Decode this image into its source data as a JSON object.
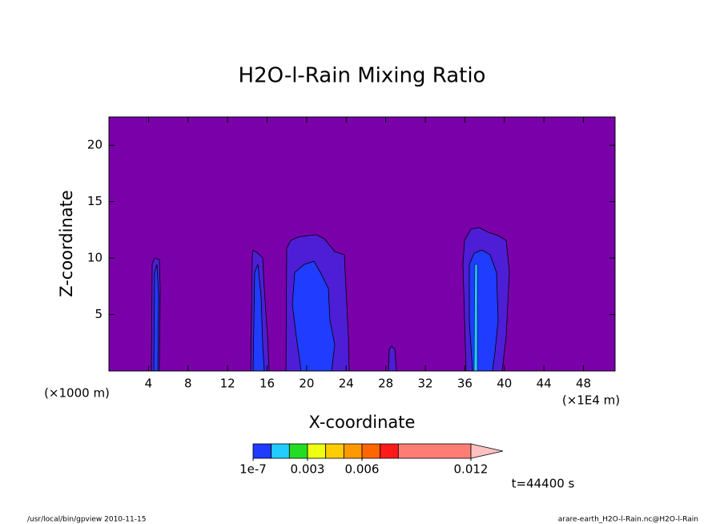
{
  "chart_data": {
    "type": "contour",
    "title": "H2O-l-Rain Mixing Ratio",
    "x_label": "X-coordinate",
    "y_label": "Z-coordinate",
    "x_unit_left": "(×1000 m)",
    "x_unit_right": "(×1E4 m)",
    "xlim": [
      0,
      51.2
    ],
    "xticks": [
      4,
      8,
      12,
      16,
      20,
      24,
      28,
      32,
      36,
      40,
      44,
      48
    ],
    "ylim": [
      0,
      22.5
    ],
    "yticks": [
      5,
      10,
      15,
      20
    ],
    "background_color": "#7a00aa",
    "colorbar": {
      "levels": [
        1e-07,
        0.001,
        0.002,
        0.003,
        0.004,
        0.005,
        0.006,
        0.007,
        0.008,
        0.012
      ],
      "colors": [
        "#1f3cff",
        "#22ccff",
        "#22dd22",
        "#eeff11",
        "#ffcc00",
        "#ff9900",
        "#ff6600",
        "#ff1a1a",
        "#ff7d75"
      ],
      "extend_color": "#ffc0c0",
      "ticks": [
        1e-07,
        0.003,
        0.006,
        0.012
      ]
    },
    "time_label": "t=44400 s",
    "footer_left": "/usr/local/bin/gpview  2010-11-15",
    "footer_right": "arare-earth_H2O-l-Rain.nc@H2O-l-Rain"
  }
}
